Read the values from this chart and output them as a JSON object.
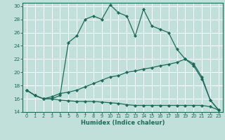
{
  "xlabel": "Humidex (Indice chaleur)",
  "bg_color": "#c2e0da",
  "line_color": "#1a6b5a",
  "grid_color": "#ffffff",
  "xlim": [
    -0.5,
    23.5
  ],
  "ylim": [
    14,
    30.5
  ],
  "yticks": [
    14,
    16,
    18,
    20,
    22,
    24,
    26,
    28,
    30
  ],
  "xticks": [
    0,
    1,
    2,
    3,
    4,
    5,
    6,
    7,
    8,
    9,
    10,
    11,
    12,
    13,
    14,
    15,
    16,
    17,
    18,
    19,
    20,
    21,
    22,
    23
  ],
  "line1_x": [
    0,
    1,
    2,
    3,
    4,
    5,
    6,
    7,
    8,
    9,
    10,
    11,
    12,
    13,
    14,
    15,
    16,
    17,
    18,
    19,
    20,
    21,
    22,
    23
  ],
  "line1_y": [
    17.3,
    16.5,
    16.0,
    16.0,
    16.5,
    24.5,
    25.5,
    28.0,
    28.5,
    28.0,
    30.2,
    29.0,
    28.5,
    25.5,
    29.5,
    27.0,
    26.5,
    26.0,
    23.5,
    22.0,
    21.0,
    19.0,
    15.8,
    14.3
  ],
  "line2_x": [
    0,
    1,
    2,
    3,
    4,
    5,
    6,
    7,
    8,
    9,
    10,
    11,
    12,
    13,
    14,
    15,
    16,
    17,
    18,
    19,
    20,
    21,
    22,
    23
  ],
  "line2_y": [
    17.3,
    16.5,
    16.0,
    16.3,
    16.8,
    17.0,
    17.3,
    17.8,
    18.3,
    18.8,
    19.3,
    19.5,
    20.0,
    20.2,
    20.5,
    20.7,
    21.0,
    21.2,
    21.5,
    22.0,
    21.3,
    19.3,
    15.8,
    14.3
  ],
  "line3_x": [
    0,
    1,
    2,
    3,
    4,
    5,
    6,
    7,
    8,
    9,
    10,
    11,
    12,
    13,
    14,
    15,
    16,
    17,
    18,
    19,
    20,
    21,
    22,
    23
  ],
  "line3_y": [
    17.3,
    16.5,
    16.0,
    16.0,
    15.8,
    15.7,
    15.6,
    15.6,
    15.6,
    15.5,
    15.4,
    15.3,
    15.1,
    15.0,
    15.0,
    15.0,
    15.0,
    15.0,
    15.0,
    15.0,
    15.0,
    15.0,
    14.8,
    14.3
  ]
}
